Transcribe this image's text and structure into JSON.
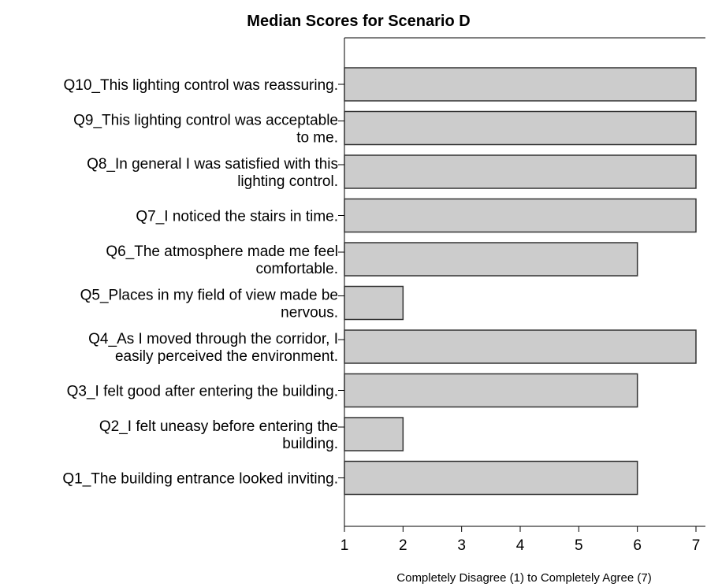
{
  "chart_data": {
    "type": "bar",
    "orientation": "horizontal",
    "title": "Median Scores for Scenario D",
    "xlabel": "Completely Disagree (1) to Completely Agree (7)",
    "ylabel": "",
    "xlim": [
      1,
      7
    ],
    "xticks": [
      "1",
      "2",
      "3",
      "4",
      "5",
      "6",
      "7"
    ],
    "grid": false,
    "bar_color": "#cccccc",
    "bar_edge_color": "#333333",
    "categories": [
      [
        "Q10_This lighting control was reassuring."
      ],
      [
        "Q9_This lighting control was acceptable",
        "to me."
      ],
      [
        "Q8_In general I was satisfied with this",
        "lighting control."
      ],
      [
        "Q7_I noticed the stairs in time."
      ],
      [
        "Q6_The atmosphere made me feel",
        "comfortable."
      ],
      [
        "Q5_Places in my field of view made be",
        "nervous."
      ],
      [
        "Q4_As I moved through the corridor, I",
        "easily perceived the environment."
      ],
      [
        "Q3_I felt good after entering the building."
      ],
      [
        "Q2_I felt uneasy before entering the",
        "building."
      ],
      [
        "Q1_The building entrance looked inviting."
      ]
    ],
    "values": [
      7,
      7,
      7,
      7,
      6,
      2,
      7,
      6,
      2,
      6
    ]
  }
}
